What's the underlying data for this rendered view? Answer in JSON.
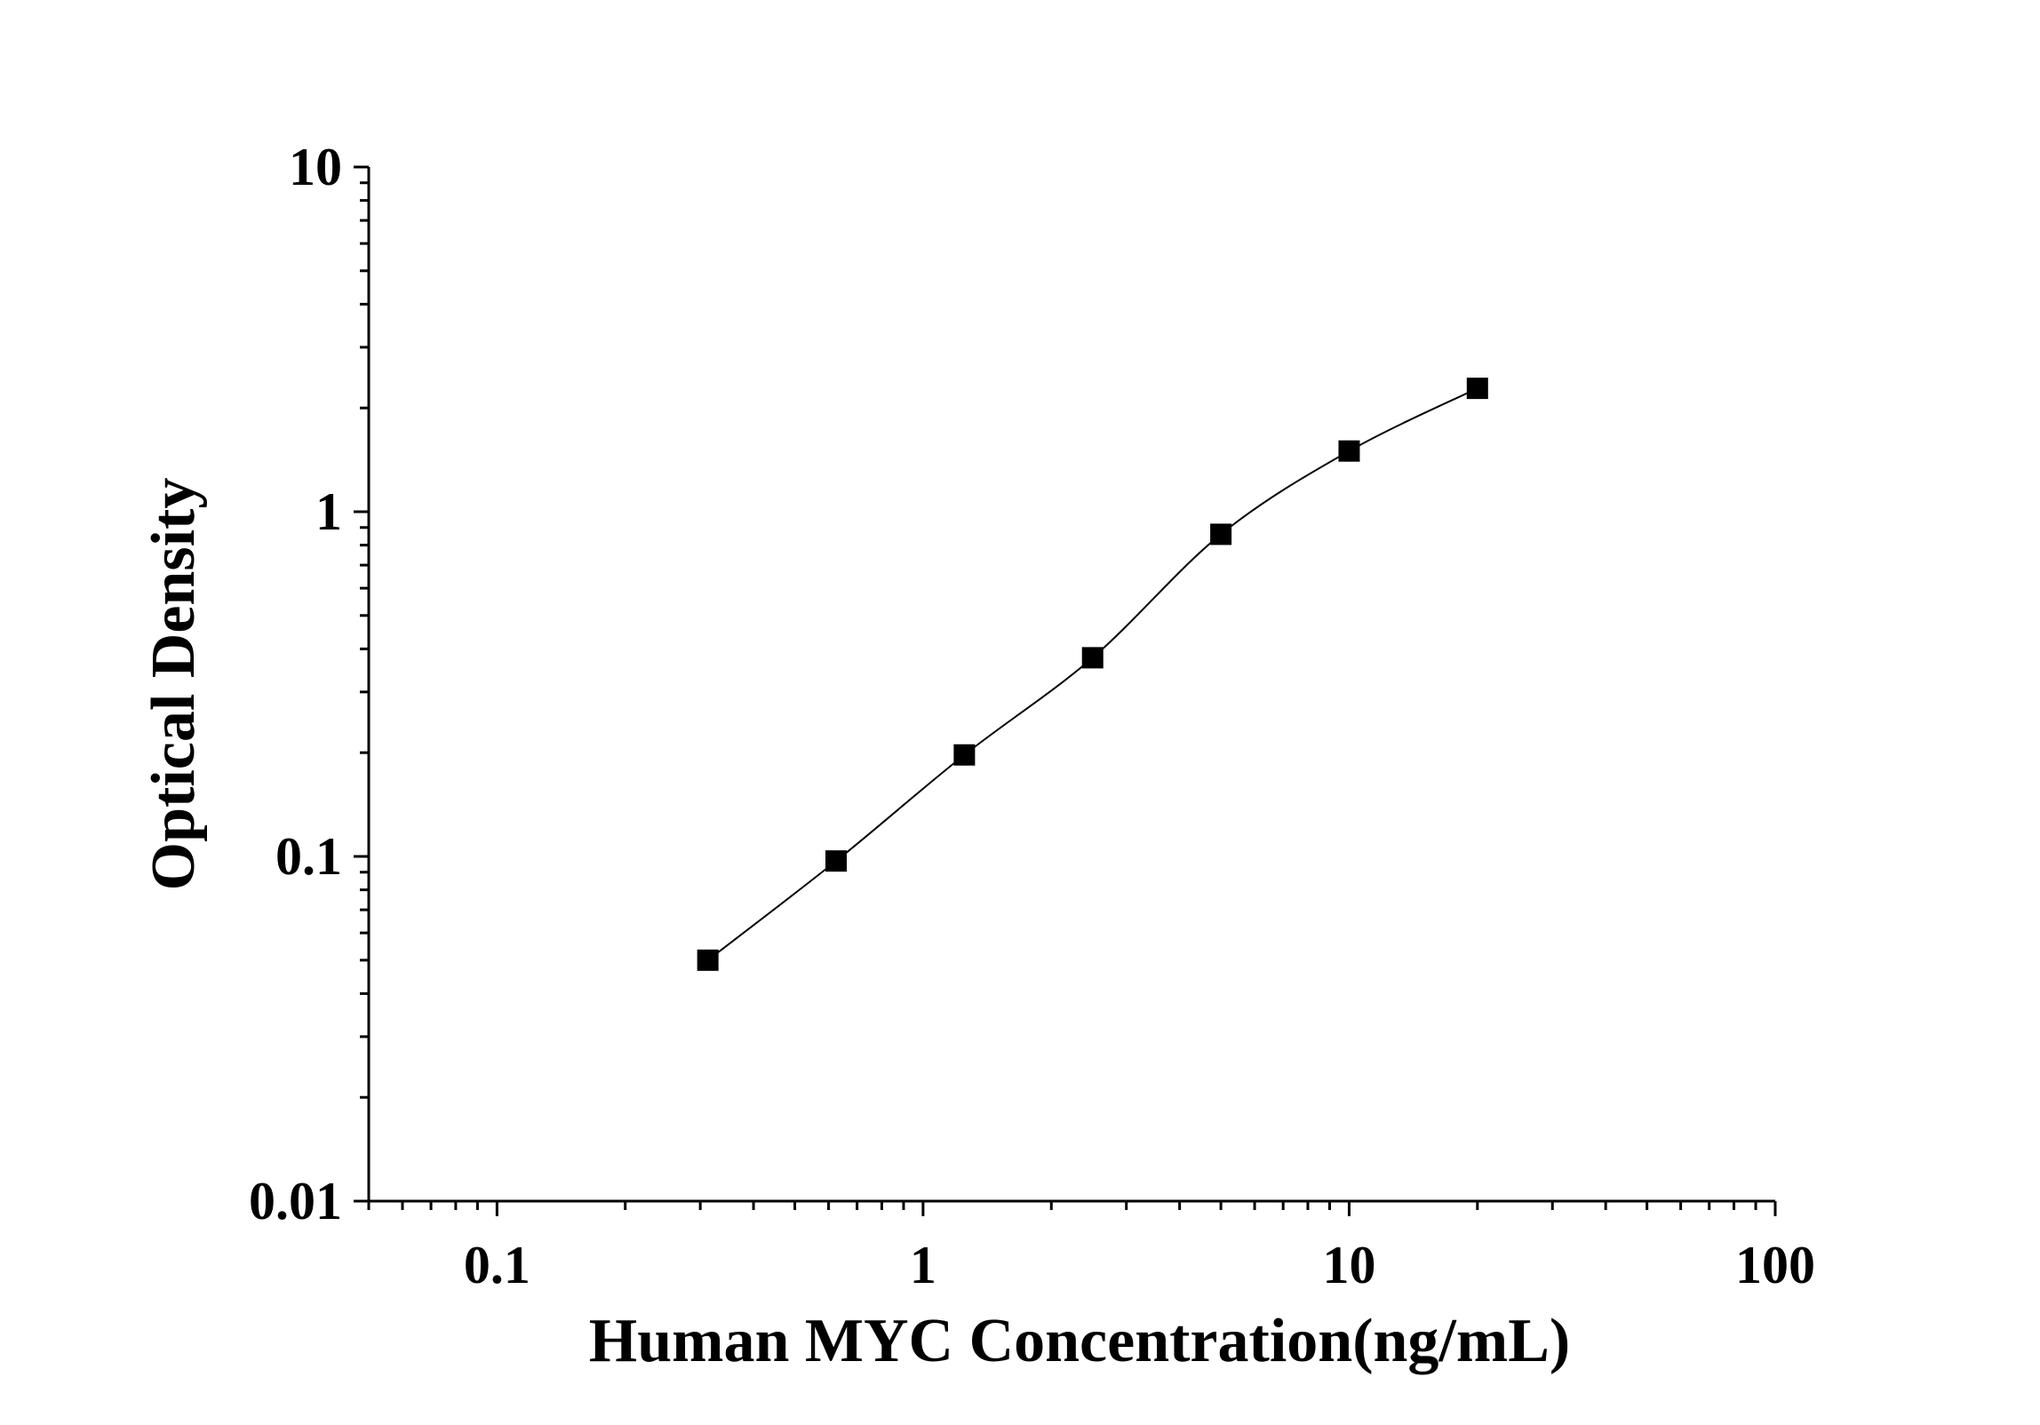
{
  "chart_data": {
    "type": "line",
    "xlabel": "Human MYC Concentration(ng/mL)",
    "ylabel": "Optical Density",
    "x_scale": "log",
    "y_scale": "log",
    "xlim": [
      0.05,
      100
    ],
    "ylim": [
      0.01,
      10
    ],
    "x_ticks": [
      0.1,
      1,
      10,
      100
    ],
    "x_tick_labels": [
      "0.1",
      "1",
      "10",
      "100"
    ],
    "y_ticks": [
      0.01,
      0.1,
      1,
      10
    ],
    "y_tick_labels": [
      "0.01",
      "0.1",
      "1",
      "10"
    ],
    "grid": false,
    "marker": "square",
    "color": "#000000",
    "series": [
      {
        "x": [
          0.3125,
          0.625,
          1.25,
          2.5,
          5,
          10,
          20
        ],
        "y": [
          0.05,
          0.097,
          0.197,
          0.377,
          0.86,
          1.5,
          2.28
        ]
      }
    ]
  }
}
